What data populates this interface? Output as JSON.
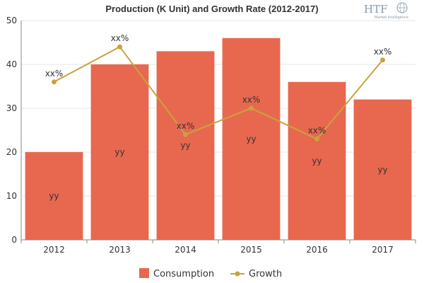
{
  "chart_data": {
    "type": "bar",
    "title": "Production (K Unit) and Growth Rate (2012-2017)",
    "categories": [
      "2012",
      "2013",
      "2014",
      "2015",
      "2016",
      "2017"
    ],
    "ylim": [
      0,
      50
    ],
    "yticks": [
      0,
      10,
      20,
      30,
      40,
      50
    ],
    "series": [
      {
        "name": "Consumption",
        "type": "bar",
        "color": "#e8684f",
        "values": [
          20,
          40,
          43,
          46,
          36,
          32
        ],
        "labels": [
          "yy",
          "yy",
          "yy",
          "yy",
          "yy",
          "yy"
        ]
      },
      {
        "name": "Growth",
        "type": "line",
        "color": "#c9a33c",
        "values": [
          36,
          44,
          24,
          30,
          23,
          41
        ],
        "labels": [
          "xx%",
          "xx%",
          "xx%",
          "xx%",
          "xx%",
          "xx%"
        ]
      }
    ],
    "grid": true,
    "legend": "bottom-center"
  },
  "logo": {
    "text": "HTF",
    "subtext": "Market Intelligence",
    "color": "#8a9aa8"
  }
}
